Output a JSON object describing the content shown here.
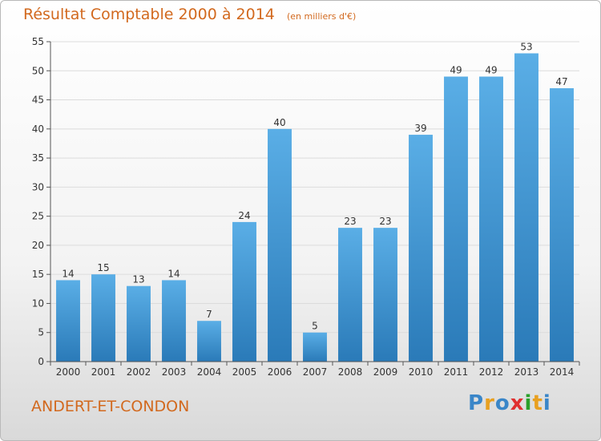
{
  "title": "Résultat Comptable 2000 à 2014",
  "subtitle": "(en milliers d'€)",
  "commune": "ANDERT-ET-CONDON",
  "logo": {
    "letters": [
      "P",
      "r",
      "o",
      "x",
      "i",
      "t",
      "i"
    ],
    "colors": [
      "#3a86c8",
      "#e8a020",
      "#3a86c8",
      "#e03030",
      "#2aa02a",
      "#e8a020",
      "#3a86c8"
    ]
  },
  "colors": {
    "bar": "#4a9fdc",
    "bar_dark": "#2c7cc0",
    "title": "#d2691e",
    "grid": "#dcdcdc"
  },
  "chart_data": {
    "type": "bar",
    "categories": [
      "2000",
      "2001",
      "2002",
      "2003",
      "2004",
      "2005",
      "2006",
      "2007",
      "2008",
      "2009",
      "2010",
      "2011",
      "2012",
      "2013",
      "2014"
    ],
    "values": [
      14,
      15,
      13,
      14,
      7,
      24,
      40,
      5,
      23,
      23,
      39,
      49,
      49,
      53,
      47
    ],
    "yticks": [
      0,
      5,
      10,
      15,
      20,
      25,
      30,
      35,
      40,
      45,
      50,
      55
    ],
    "ylim": [
      0,
      55
    ],
    "grid": true
  }
}
